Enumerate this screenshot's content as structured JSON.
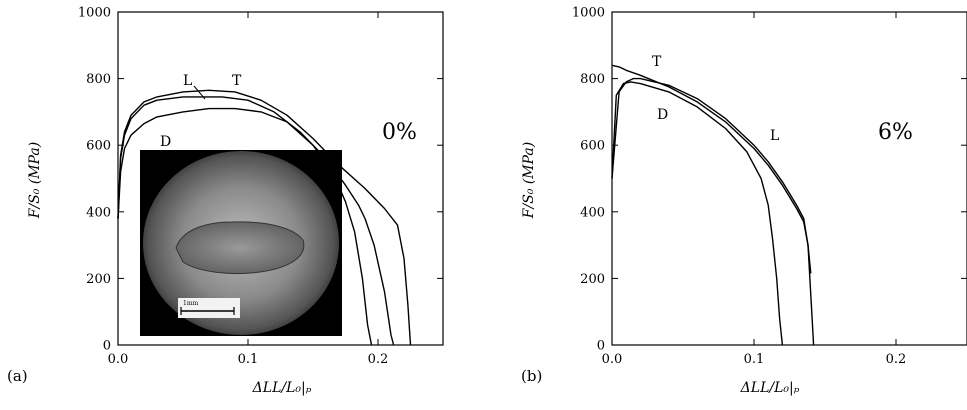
{
  "chart_data": [
    {
      "type": "line",
      "panel_label": "(a)",
      "strain_label": "0%",
      "xlabel": "ΔLL/L₀|ₚ",
      "ylabel": "F/S₀ (MPa)",
      "xlim": [
        0,
        0.25
      ],
      "ylim": [
        0,
        1000
      ],
      "xticks": [
        0.0,
        0.1,
        0.2
      ],
      "xtick_labels": [
        "0.0",
        "0.1",
        "0.2"
      ],
      "yticks": [
        0,
        200,
        400,
        600,
        800,
        1000
      ],
      "ytick_labels": [
        "0",
        "200",
        "400",
        "600",
        "800",
        "1000"
      ],
      "grid": false,
      "inset_image": {
        "present": true,
        "scale_bar_text": "1mm"
      },
      "series": [
        {
          "name": "L",
          "x": [
            0.0,
            0.002,
            0.005,
            0.01,
            0.02,
            0.03,
            0.05,
            0.08,
            0.1,
            0.12,
            0.14,
            0.16,
            0.175,
            0.185,
            0.19,
            0.197,
            0.205,
            0.21,
            0.212
          ],
          "y": [
            380,
            560,
            630,
            680,
            720,
            735,
            745,
            745,
            735,
            700,
            640,
            560,
            480,
            420,
            380,
            300,
            160,
            30,
            0
          ]
        },
        {
          "name": "T",
          "x": [
            0.0,
            0.002,
            0.005,
            0.01,
            0.02,
            0.03,
            0.05,
            0.07,
            0.09,
            0.11,
            0.13,
            0.15,
            0.17,
            0.19,
            0.205,
            0.215,
            0.22,
            0.223,
            0.225
          ],
          "y": [
            380,
            570,
            640,
            690,
            730,
            745,
            760,
            765,
            760,
            735,
            690,
            620,
            540,
            470,
            410,
            360,
            260,
            120,
            0
          ]
        },
        {
          "name": "D",
          "x": [
            0.0,
            0.002,
            0.005,
            0.01,
            0.02,
            0.03,
            0.05,
            0.07,
            0.09,
            0.11,
            0.13,
            0.15,
            0.165,
            0.175,
            0.182,
            0.188,
            0.192,
            0.195
          ],
          "y": [
            380,
            520,
            590,
            630,
            665,
            685,
            700,
            710,
            710,
            700,
            670,
            600,
            520,
            430,
            340,
            200,
            60,
            0
          ]
        }
      ]
    },
    {
      "type": "line",
      "panel_label": "(b)",
      "strain_label": "6%",
      "xlabel": "ΔLL/L₀|ₚ",
      "ylabel": "F/S₀ (MPa)",
      "xlim": [
        0,
        0.25
      ],
      "ylim": [
        0,
        1000
      ],
      "xticks": [
        0.0,
        0.1,
        0.2
      ],
      "xtick_labels": [
        "0.0",
        "0.1",
        "0.2"
      ],
      "yticks": [
        0,
        200,
        400,
        600,
        800,
        1000
      ],
      "ytick_labels": [
        "0",
        "200",
        "400",
        "600",
        "800",
        "1000"
      ],
      "grid": false,
      "series": [
        {
          "name": "T",
          "x": [
            0.0,
            0.005,
            0.01,
            0.02,
            0.04,
            0.06,
            0.08,
            0.1,
            0.11,
            0.12,
            0.13,
            0.135,
            0.138,
            0.14,
            0.142
          ],
          "y": [
            840,
            835,
            825,
            810,
            775,
            730,
            670,
            590,
            540,
            480,
            410,
            370,
            300,
            150,
            0
          ]
        },
        {
          "name": "L",
          "x": [
            0.0,
            0.005,
            0.01,
            0.015,
            0.02,
            0.04,
            0.06,
            0.08,
            0.1,
            0.11,
            0.12,
            0.13,
            0.135,
            0.138,
            0.14
          ],
          "y": [
            500,
            760,
            790,
            800,
            800,
            780,
            740,
            680,
            600,
            550,
            490,
            420,
            380,
            300,
            215
          ]
        },
        {
          "name": "D",
          "x": [
            0.0,
            0.003,
            0.008,
            0.013,
            0.02,
            0.04,
            0.06,
            0.08,
            0.095,
            0.105,
            0.11,
            0.113,
            0.116,
            0.118,
            0.12
          ],
          "y": [
            500,
            750,
            785,
            790,
            785,
            760,
            715,
            650,
            580,
            500,
            420,
            320,
            200,
            80,
            0
          ]
        }
      ]
    }
  ]
}
